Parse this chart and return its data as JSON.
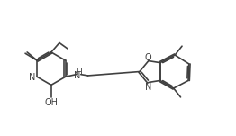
{
  "bg_color": "#ffffff",
  "line_color": "#404040",
  "line_width": 1.2,
  "font_size": 7.0,
  "figsize": [
    2.62,
    1.51
  ],
  "dpi": 100,
  "xlim": [
    0,
    10
  ],
  "ylim": [
    0,
    5.75
  ]
}
